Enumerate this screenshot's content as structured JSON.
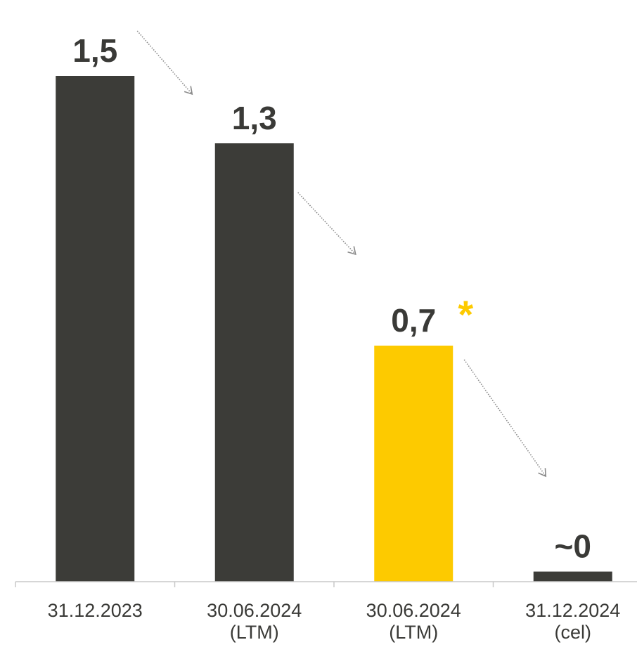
{
  "chart_data": {
    "type": "bar",
    "categories": [
      [
        "31.12.2023"
      ],
      [
        "30.06.2024",
        "(LTM)"
      ],
      [
        "30.06.2024",
        "(LTM)"
      ],
      [
        "31.12.2024",
        "(cel)"
      ]
    ],
    "values": [
      1.5,
      1.3,
      0.7,
      0.03
    ],
    "data_labels": [
      "1,5",
      "1,3",
      "0,7",
      "~0"
    ],
    "annotation": {
      "bar_index": 2,
      "text": "*",
      "color": "#fdca00"
    },
    "bar_colors": [
      "#3c3c38",
      "#3c3c38",
      "#fdca00",
      "#3c3c38"
    ],
    "text_color": "#3a3a37",
    "arrow_color": "#8a8a8a",
    "trend_arrows": [
      {
        "from_bar": 0,
        "to_bar": 1
      },
      {
        "from_bar": 1,
        "to_bar": 2
      },
      {
        "from_bar": 2,
        "to_bar": 3
      }
    ],
    "ylim": [
      0,
      1.5
    ],
    "grid": false,
    "legend": "none",
    "title": "",
    "xlabel": "",
    "ylabel": ""
  }
}
